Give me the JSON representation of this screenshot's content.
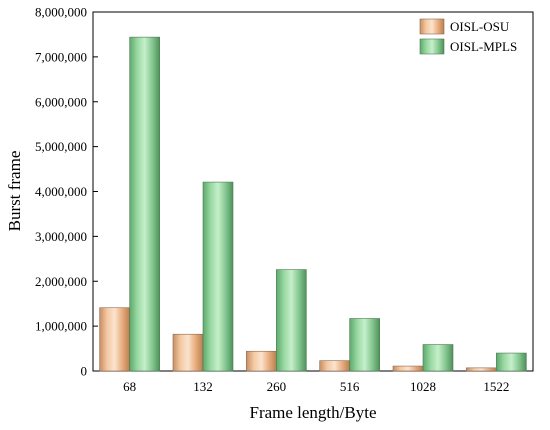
{
  "chart_data": {
    "type": "bar",
    "title": "",
    "xlabel": "Frame length/Byte",
    "ylabel": "Burst frame",
    "categories": [
      "68",
      "132",
      "260",
      "516",
      "1028",
      "1522"
    ],
    "series": [
      {
        "name": "OISL-OSU",
        "values": [
          1410000,
          820000,
          440000,
          230000,
          110000,
          70000
        ],
        "color": "#f2b98a"
      },
      {
        "name": "OISL-MPLS",
        "values": [
          7440000,
          4210000,
          2260000,
          1170000,
          590000,
          400000
        ],
        "color": "#8fd19a"
      }
    ],
    "ylim": [
      0,
      8000000
    ],
    "yticks": [
      0,
      1000000,
      2000000,
      3000000,
      4000000,
      5000000,
      6000000,
      7000000,
      8000000
    ],
    "ytick_labels": [
      "0",
      "1,000,000",
      "2,000,000",
      "3,000,000",
      "4,000,000",
      "5,000,000",
      "6,000,000",
      "7,000,000",
      "8,000,000"
    ],
    "grid": false,
    "legend_position": "top-right"
  }
}
